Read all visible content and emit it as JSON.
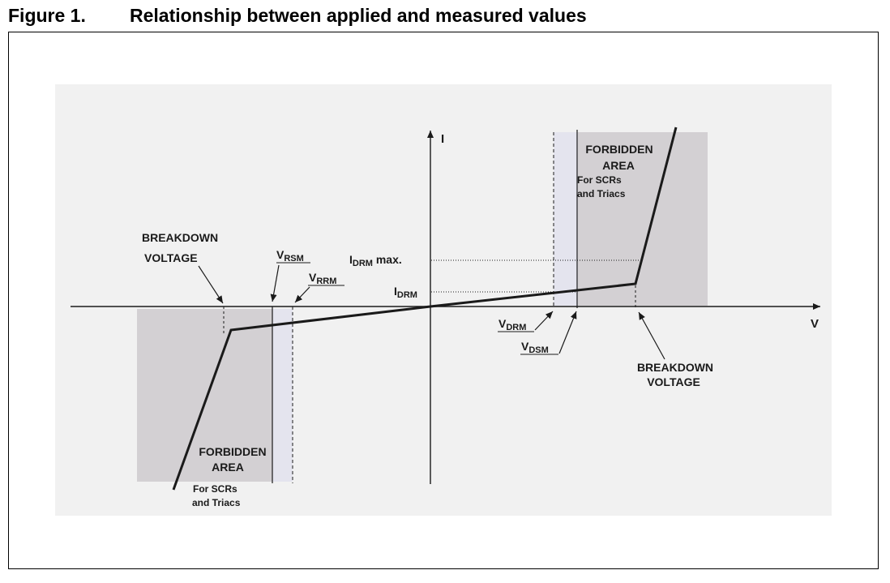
{
  "caption": {
    "number": "Figure 1.",
    "title": "Relationship between applied and measured values"
  },
  "axes": {
    "y_label": "I",
    "x_label": "V"
  },
  "labels": {
    "breakdown_left_1": "BREAKDOWN",
    "breakdown_left_2": "VOLTAGE",
    "v_rsm_main": "V",
    "v_rsm_sub": "RSM",
    "v_rrm_main": "V",
    "v_rrm_sub": "RRM",
    "i_drm_max_main": "I",
    "i_drm_max_sub": "DRM",
    "i_drm_max_suffix": " max.",
    "i_drm_main": "I",
    "i_drm_sub": "DRM",
    "v_drm_main": "V",
    "v_drm_sub": "DRM",
    "v_dsm_main": "V",
    "v_dsm_sub": "DSM",
    "breakdown_right_1": "BREAKDOWN",
    "breakdown_right_2": "VOLTAGE",
    "forbidden_top_1": "FORBIDDEN",
    "forbidden_top_2": "AREA",
    "forbidden_top_3": "For SCRs",
    "forbidden_top_4": "and Triacs",
    "forbidden_bottom_1": "FORBIDDEN",
    "forbidden_bottom_2": "AREA",
    "forbidden_bottom_3": "For SCRs",
    "forbidden_bottom_4": "and Triacs"
  },
  "colors": {
    "background_panel": "#f1f1f1",
    "forbidden_area": "#d3d0d3",
    "guard_band": "#e4e4ee",
    "ink": "#1a1a1a"
  }
}
